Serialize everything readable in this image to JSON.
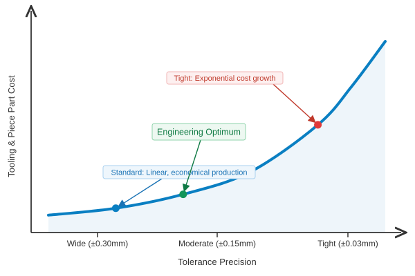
{
  "chart_data": {
    "type": "line",
    "title": "",
    "xlabel": "Tolerance Precision",
    "ylabel": "Tooling & Piece Part Cost",
    "categories": [
      "Wide (±0.30mm)",
      "Moderate (±0.15mm)",
      "Tight (±0.03mm)"
    ],
    "grid": false,
    "legend": "none",
    "series": [
      {
        "color": "#0a7fc2",
        "fill": "#eef5fa",
        "curve": [
          {
            "x": 0,
            "y": 0.1
          },
          {
            "x": 0.5,
            "y": 0.14
          },
          {
            "x": 1.0,
            "y": 0.22
          },
          {
            "x": 1.5,
            "y": 0.35
          },
          {
            "x": 2.0,
            "y": 0.62
          },
          {
            "x": 2.25,
            "y": 0.84
          },
          {
            "x": 2.5,
            "y": 1.1
          }
        ]
      }
    ],
    "points": [
      {
        "x": 0.5,
        "y": 0.14,
        "color": "#0a7fc2"
      },
      {
        "x": 1.0,
        "y": 0.22,
        "color": "#13955a"
      },
      {
        "x": 2.0,
        "y": 0.62,
        "color": "#e03a3a"
      }
    ],
    "annotations": [
      {
        "text": "Standard: Linear, economical production",
        "target": 0,
        "text_color": "#1a73b5",
        "bg": "#eef6fc",
        "border": "#a9d1ef"
      },
      {
        "text": "Engineering Optimum",
        "target": 1,
        "text_color": "#0f7a44",
        "bg": "#edf8f1",
        "border": "#8fd3ab"
      },
      {
        "text": "Tight: Exponential cost growth",
        "target": 2,
        "text_color": "#c0392b",
        "bg": "#fdf0f0",
        "border": "#f1b5b5"
      }
    ]
  }
}
